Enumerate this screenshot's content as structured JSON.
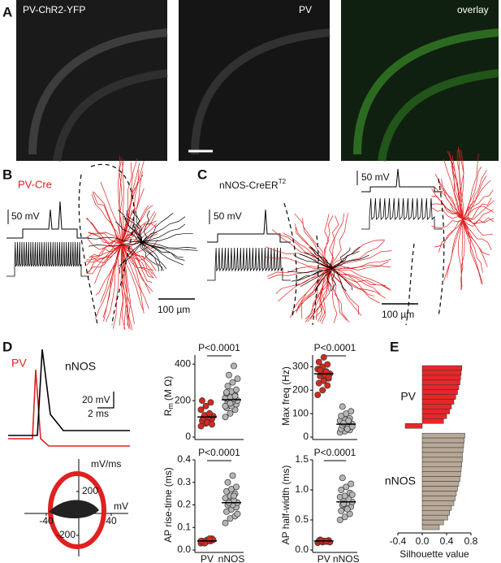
{
  "panel_labels": [
    "A",
    "B",
    "C",
    "D",
    "E"
  ],
  "panel_a": {
    "titles": [
      "PV-ChR2-YFP",
      "PV",
      "overlay"
    ]
  },
  "panel_b": {
    "label": "PV-Cre",
    "scale_voltage": "50 mV",
    "scale_length": "100 µm"
  },
  "panel_c": {
    "label": "nNOS-CreER",
    "label_sup": "T2",
    "scale_voltage_1": "50 mV",
    "scale_voltage_2": "50 mV",
    "scale_length": "100 µm"
  },
  "panel_d": {
    "legend": [
      "PV",
      "nNOS"
    ],
    "scale_voltage": "20 mV",
    "scale_time": "2 ms",
    "phase_ylabel": "mV/ms",
    "phase_xlabel": "mV",
    "phase_xticks": [
      -40,
      40
    ],
    "phase_yticks": [
      200,
      -200
    ]
  },
  "chart_data": [
    {
      "type": "strip",
      "ylabel_parts": [
        "R",
        "m",
        "(M Ω)"
      ],
      "annotation": "P<0.0001",
      "ylim": [
        0,
        450
      ],
      "yticks": [
        0,
        200,
        400
      ],
      "groups": [
        {
          "color": "#d42a1e",
          "mean": 110,
          "values": [
            60,
            75,
            85,
            90,
            95,
            100,
            105,
            110,
            115,
            120,
            130,
            150,
            170,
            190,
            200,
            80,
            70
          ]
        },
        {
          "color": "#b5b5b5",
          "mean": 205,
          "values": [
            110,
            130,
            150,
            160,
            170,
            180,
            190,
            195,
            200,
            205,
            210,
            215,
            220,
            230,
            240,
            250,
            260,
            280,
            300,
            320,
            340,
            390,
            170,
            185,
            225,
            245
          ]
        }
      ]
    },
    {
      "type": "strip",
      "ylabel": "Max freq (Hz)",
      "annotation": "P<0.0001",
      "ylim": [
        0,
        350
      ],
      "yticks": [
        0,
        100,
        200,
        300
      ],
      "groups": [
        {
          "color": "#d42a1e",
          "mean": 270,
          "values": [
            180,
            200,
            220,
            230,
            240,
            250,
            260,
            265,
            270,
            275,
            280,
            290,
            300,
            310,
            320,
            340,
            255,
            285
          ]
        },
        {
          "color": "#b5b5b5",
          "mean": 55,
          "values": [
            20,
            25,
            30,
            35,
            40,
            45,
            50,
            55,
            55,
            60,
            65,
            70,
            75,
            80,
            90,
            100,
            110,
            130,
            35,
            45,
            60,
            70
          ]
        }
      ]
    },
    {
      "type": "strip",
      "ylabel": "AP rise-time (ms)",
      "annotation": "P<0.0001",
      "categories": [
        "PV",
        "nNOS"
      ],
      "ylim": [
        0,
        0.4
      ],
      "yticks": [
        {
          "value": 0,
          "label": "0.0"
        },
        0.1,
        0.2,
        0.3,
        0.4
      ],
      "groups": [
        {
          "color": "#d42a1e",
          "mean": 0.04,
          "values": [
            0.03,
            0.035,
            0.04,
            0.04,
            0.045,
            0.05,
            0.035,
            0.04,
            0.045,
            0.03,
            0.05,
            0.04
          ]
        },
        {
          "color": "#b5b5b5",
          "mean": 0.21,
          "values": [
            0.12,
            0.14,
            0.15,
            0.17,
            0.18,
            0.19,
            0.2,
            0.2,
            0.21,
            0.22,
            0.22,
            0.23,
            0.24,
            0.25,
            0.26,
            0.27,
            0.28,
            0.3,
            0.33,
            0.16,
            0.21,
            0.24
          ]
        }
      ]
    },
    {
      "type": "strip",
      "ylabel": "AP half-width (ms)",
      "annotation": "P<0.0001",
      "categories": [
        "PV",
        "nNOS"
      ],
      "ylim": [
        0,
        1.5
      ],
      "yticks": [
        {
          "value": 0,
          "label": "0.0"
        },
        0.5,
        {
          "value": 1,
          "label": "1.0"
        },
        1.5
      ],
      "groups": [
        {
          "color": "#d42a1e",
          "mean": 0.15,
          "values": [
            0.12,
            0.13,
            0.14,
            0.15,
            0.15,
            0.16,
            0.17,
            0.14,
            0.13,
            0.16,
            0.15
          ]
        },
        {
          "color": "#b5b5b5",
          "mean": 0.8,
          "values": [
            0.5,
            0.55,
            0.6,
            0.65,
            0.7,
            0.72,
            0.75,
            0.78,
            0.8,
            0.82,
            0.85,
            0.88,
            0.9,
            0.95,
            1.0,
            1.05,
            1.1,
            1.2,
            0.68,
            0.92,
            0.77
          ]
        }
      ]
    },
    {
      "type": "hbar",
      "xlabel": "Silhouette value",
      "xlim": [
        -0.4,
        0.8
      ],
      "xticks": [
        -0.4,
        {
          "value": 0,
          "label": "0.0"
        },
        0.4,
        0.8
      ],
      "series": [
        {
          "name": "PV",
          "color": "#e8262a",
          "values": [
            0.65,
            0.64,
            0.63,
            0.62,
            0.6,
            0.58,
            0.55,
            0.52,
            0.48,
            0.45,
            0.4,
            0.35,
            -0.28
          ]
        },
        {
          "name": "nNOS",
          "color": "#b8a898",
          "values": [
            0.7,
            0.69,
            0.68,
            0.67,
            0.66,
            0.66,
            0.65,
            0.64,
            0.63,
            0.62,
            0.6,
            0.58,
            0.56,
            0.54,
            0.52,
            0.48,
            0.45,
            0.42,
            0.35,
            0.28
          ]
        }
      ]
    }
  ]
}
